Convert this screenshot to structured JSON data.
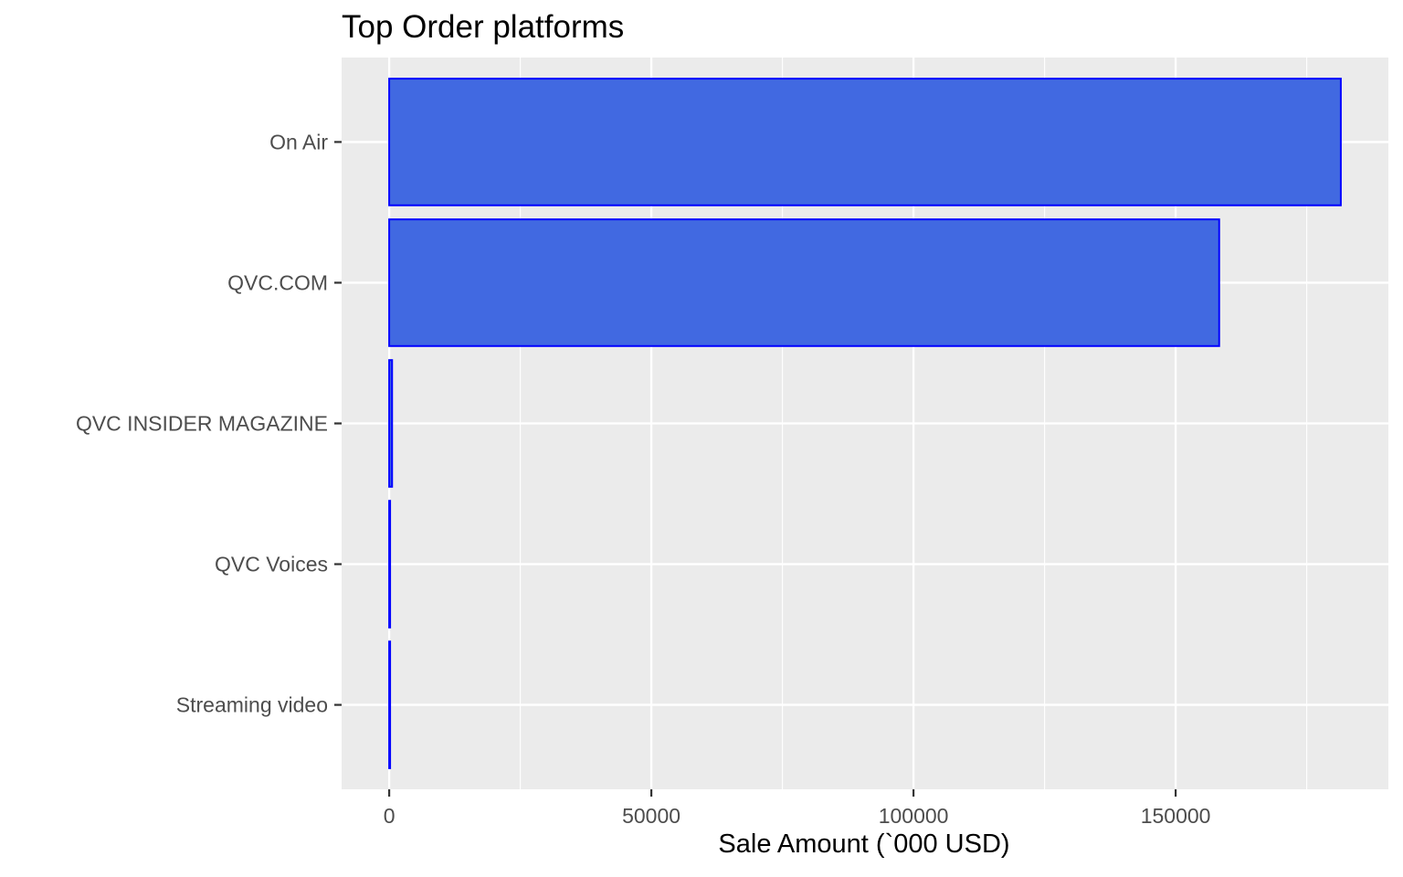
{
  "chart_data": {
    "type": "bar",
    "orientation": "horizontal",
    "title": "Top Order platforms",
    "xlabel": "Sale Amount (`000 USD)",
    "ylabel": "",
    "categories": [
      "On Air",
      "QVC.COM",
      "QVC INSIDER MAGAZINE",
      "QVC Voices",
      "Streaming video"
    ],
    "values": [
      181500,
      158300,
      550,
      40,
      20
    ],
    "xlim": [
      -9075,
      190575
    ],
    "xticks": [
      0,
      50000,
      100000,
      150000
    ],
    "xtick_labels": [
      "0",
      "50000",
      "100000",
      "150000"
    ],
    "grid": true,
    "legend": "none",
    "colors": {
      "bar_fill": "#4169E1",
      "bar_outline": "#0000FF",
      "panel_background": "#EBEBEB",
      "grid_major": "#FFFFFF",
      "tick_label": "#4D4D4D",
      "axis_tick": "#333333"
    }
  }
}
